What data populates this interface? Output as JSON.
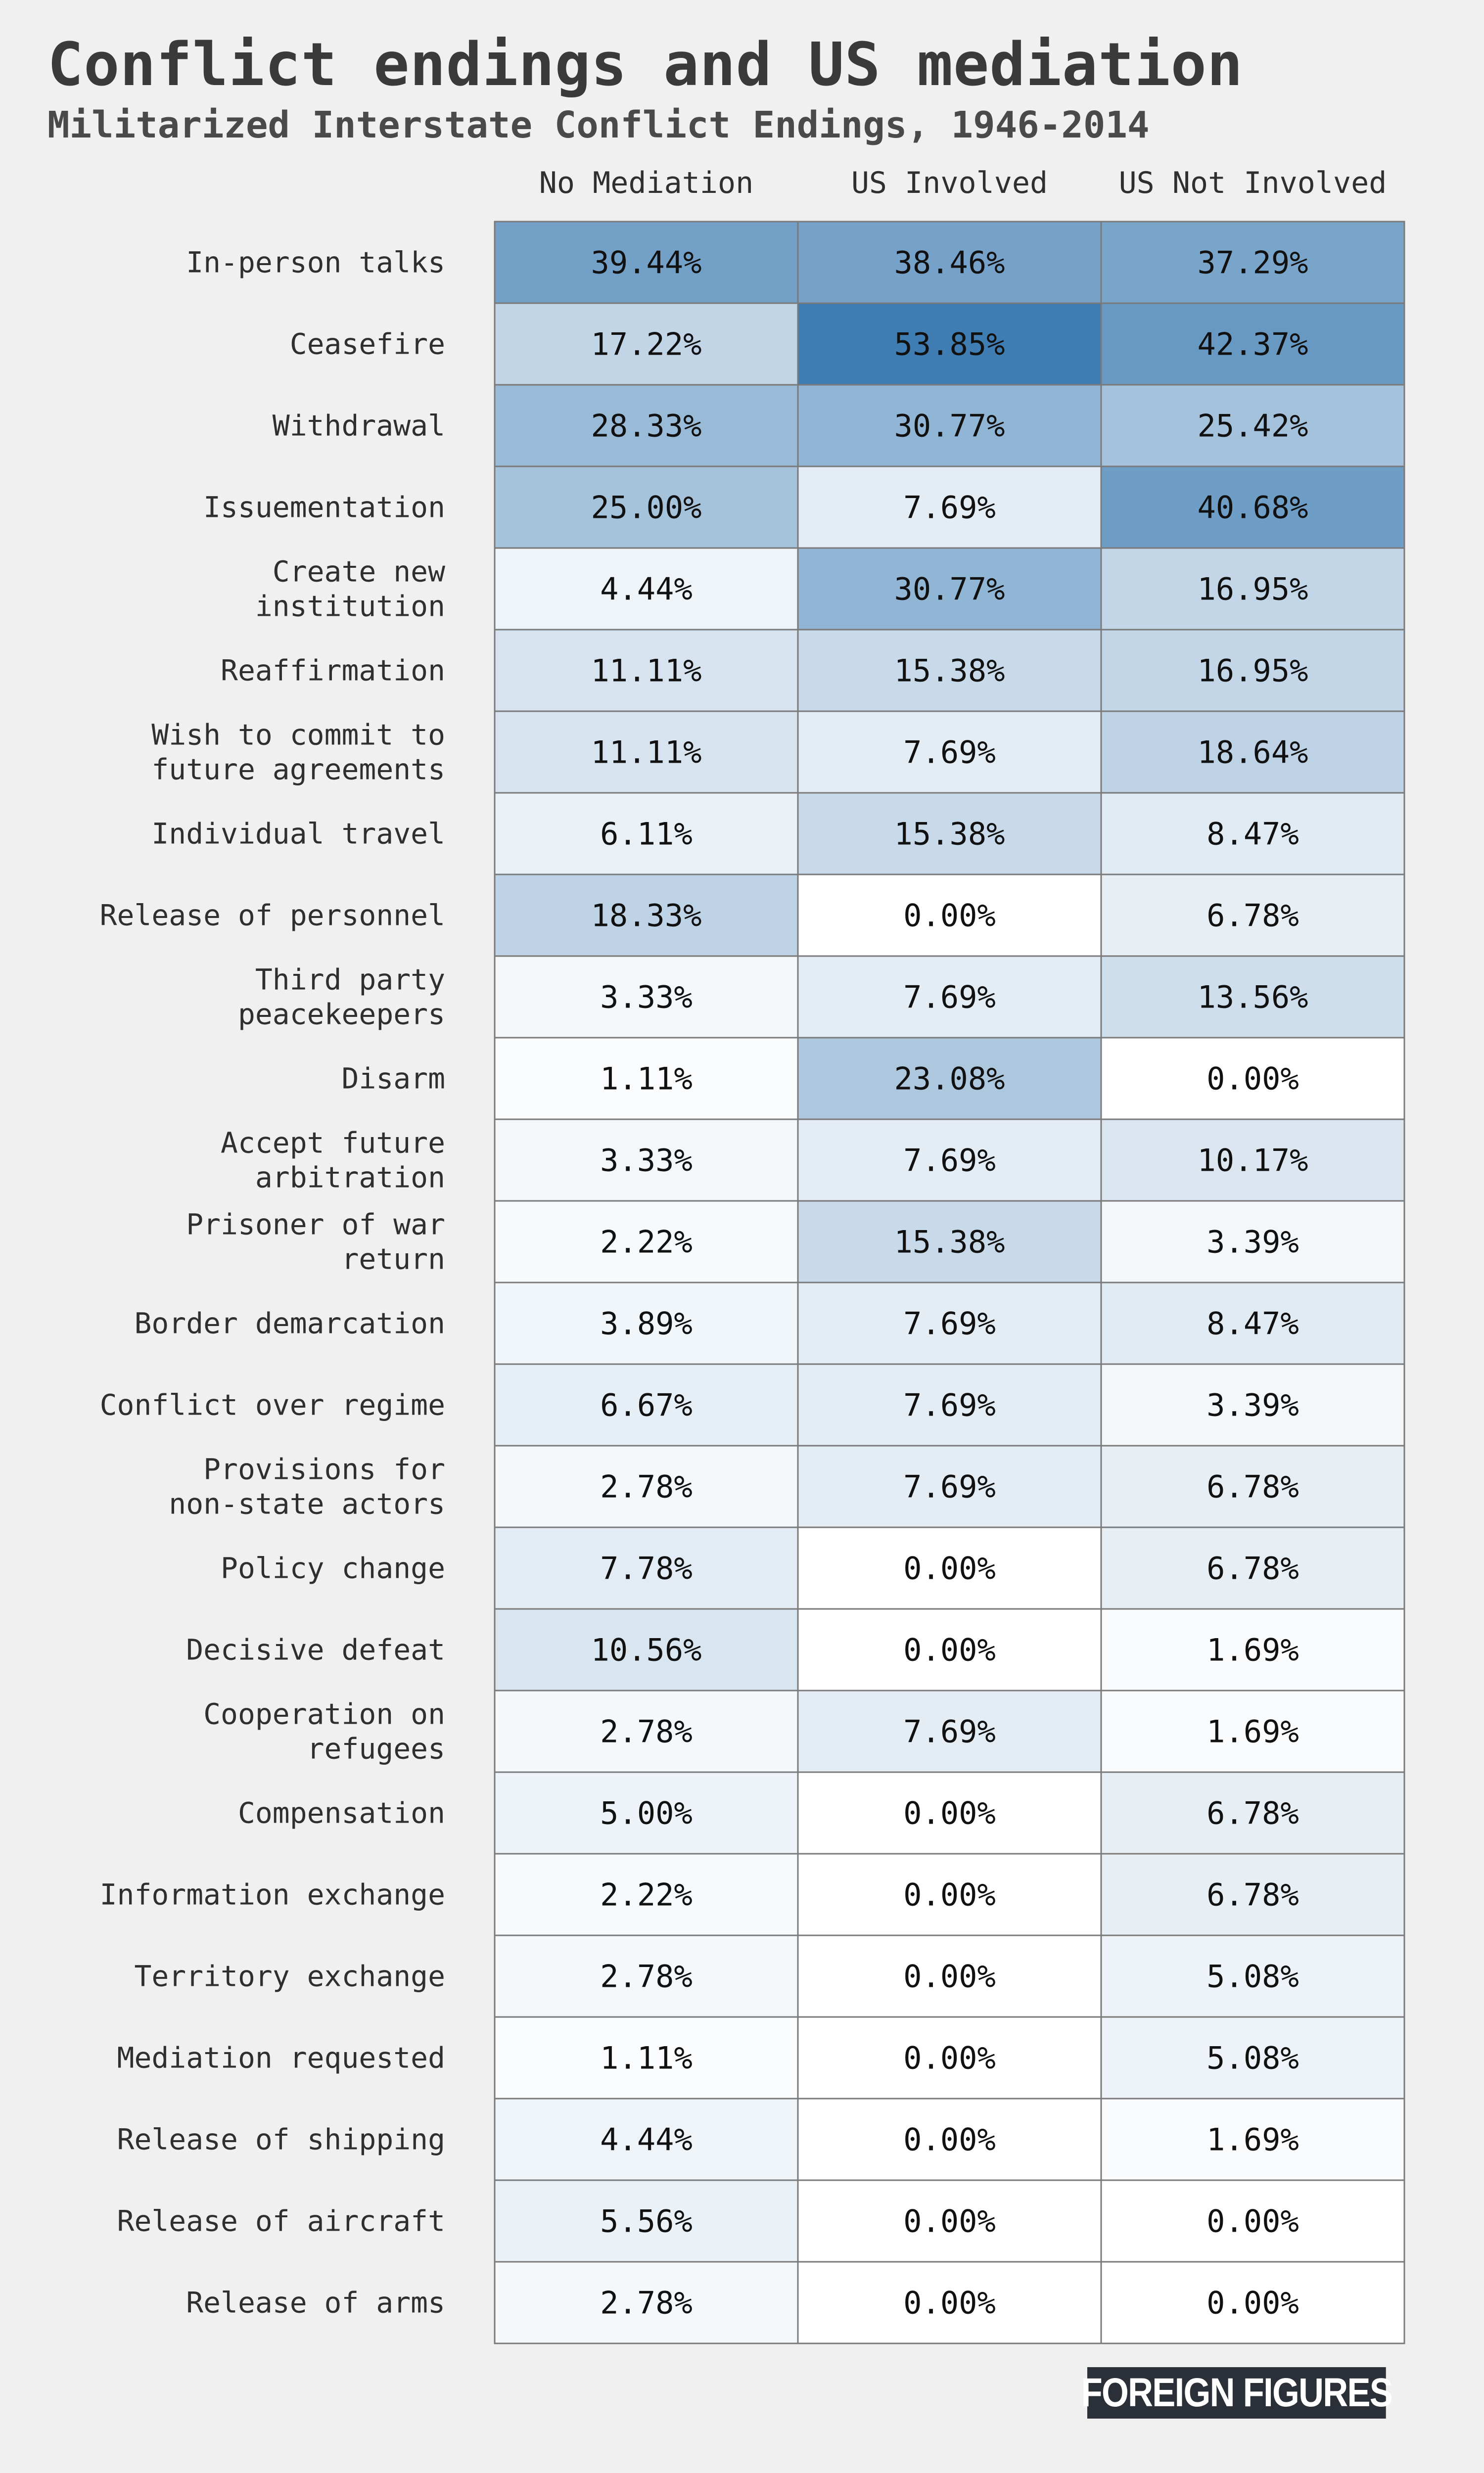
{
  "header": {
    "title": "Conflict endings and US mediation",
    "subtitle": "Militarized Interstate Conflict Endings, 1946-2014"
  },
  "brand": {
    "label": "FOREIGN FIGURES"
  },
  "colors": {
    "low": "#ffffff",
    "high": "#3f7db3",
    "background": "#f0f0f0"
  },
  "chart_data": {
    "type": "heatmap",
    "title": "Conflict endings and US mediation",
    "subtitle": "Militarized Interstate Conflict Endings, 1946-2014",
    "columns": [
      "No Mediation",
      "US Involved",
      "US Not Involved"
    ],
    "rows": [
      {
        "label": [
          "In-person talks"
        ],
        "values": [
          39.44,
          38.46,
          37.29
        ]
      },
      {
        "label": [
          "Ceasefire"
        ],
        "values": [
          17.22,
          53.85,
          42.37
        ]
      },
      {
        "label": [
          "Withdrawal"
        ],
        "values": [
          28.33,
          30.77,
          25.42
        ]
      },
      {
        "label": [
          "Issuementation"
        ],
        "values": [
          25.0,
          7.69,
          40.68
        ]
      },
      {
        "label": [
          "Create new",
          "institution"
        ],
        "values": [
          4.44,
          30.77,
          16.95
        ]
      },
      {
        "label": [
          "Reaffirmation"
        ],
        "values": [
          11.11,
          15.38,
          16.95
        ]
      },
      {
        "label": [
          "Wish to commit to",
          "future agreements"
        ],
        "values": [
          11.11,
          7.69,
          18.64
        ]
      },
      {
        "label": [
          "Individual travel"
        ],
        "values": [
          6.11,
          15.38,
          8.47
        ]
      },
      {
        "label": [
          "Release of personnel"
        ],
        "values": [
          18.33,
          0.0,
          6.78
        ]
      },
      {
        "label": [
          "Third party",
          "peacekeepers"
        ],
        "values": [
          3.33,
          7.69,
          13.56
        ]
      },
      {
        "label": [
          "Disarm"
        ],
        "values": [
          1.11,
          23.08,
          0.0
        ]
      },
      {
        "label": [
          "Accept future",
          "arbitration"
        ],
        "values": [
          3.33,
          7.69,
          10.17
        ]
      },
      {
        "label": [
          "Prisoner of war",
          "return"
        ],
        "values": [
          2.22,
          15.38,
          3.39
        ]
      },
      {
        "label": [
          "Border demarcation"
        ],
        "values": [
          3.89,
          7.69,
          8.47
        ]
      },
      {
        "label": [
          "Conflict over regime"
        ],
        "values": [
          6.67,
          7.69,
          3.39
        ]
      },
      {
        "label": [
          "Provisions for",
          "non-state actors"
        ],
        "values": [
          2.78,
          7.69,
          6.78
        ]
      },
      {
        "label": [
          "Policy change"
        ],
        "values": [
          7.78,
          0.0,
          6.78
        ]
      },
      {
        "label": [
          "Decisive defeat"
        ],
        "values": [
          10.56,
          0.0,
          1.69
        ]
      },
      {
        "label": [
          "Cooperation on",
          "refugees"
        ],
        "values": [
          2.78,
          7.69,
          1.69
        ]
      },
      {
        "label": [
          "Compensation"
        ],
        "values": [
          5.0,
          0.0,
          6.78
        ]
      },
      {
        "label": [
          "Information exchange"
        ],
        "values": [
          2.22,
          0.0,
          6.78
        ]
      },
      {
        "label": [
          "Territory exchange"
        ],
        "values": [
          2.78,
          0.0,
          5.08
        ]
      },
      {
        "label": [
          "Mediation requested"
        ],
        "values": [
          1.11,
          0.0,
          5.08
        ]
      },
      {
        "label": [
          "Release of shipping"
        ],
        "values": [
          4.44,
          0.0,
          1.69
        ]
      },
      {
        "label": [
          "Release of aircraft"
        ],
        "values": [
          5.56,
          0.0,
          0.0
        ]
      },
      {
        "label": [
          "Release of arms"
        ],
        "values": [
          2.78,
          0.0,
          0.0
        ]
      }
    ],
    "value_range": [
      0,
      53.85
    ],
    "unit": "%",
    "value_decimals": 2
  }
}
